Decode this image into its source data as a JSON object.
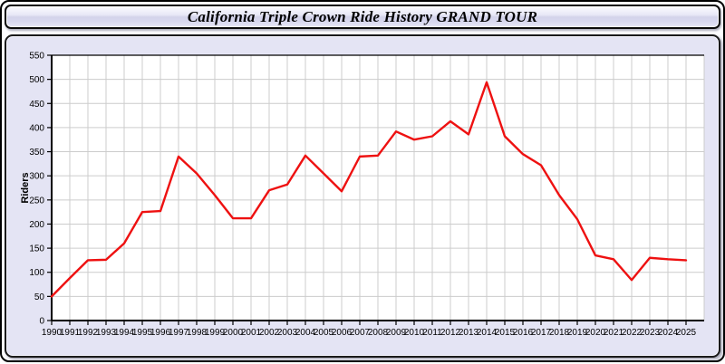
{
  "window": {
    "title": "California Triple Crown Ride History GRAND TOUR"
  },
  "chart_data": {
    "type": "line",
    "title": "California Triple Crown Ride History GRAND TOUR",
    "xlabel": "",
    "ylabel": "Riders",
    "x": [
      1990,
      1991,
      1992,
      1993,
      1994,
      1995,
      1996,
      1997,
      1998,
      1999,
      2000,
      2001,
      2002,
      2003,
      2004,
      2005,
      2006,
      2007,
      2008,
      2009,
      2010,
      2011,
      2012,
      2013,
      2014,
      2015,
      2016,
      2017,
      2018,
      2019,
      2020,
      2021,
      2022,
      2023,
      2024,
      2025
    ],
    "values": [
      50,
      88,
      125,
      126,
      160,
      225,
      227,
      340,
      305,
      260,
      212,
      212,
      270,
      282,
      342,
      305,
      268,
      340,
      342,
      392,
      375,
      382,
      413,
      386,
      494,
      382,
      345,
      322,
      260,
      210,
      135,
      127,
      84,
      130,
      127,
      125
    ],
    "ylim": [
      0,
      550
    ],
    "ytick_step": 50,
    "grid": true,
    "legend": "none",
    "series_name": "Riders",
    "line_color": "#ee1111"
  },
  "colors": {
    "panel_background": "#e4e4f4",
    "plot_background": "#ffffff",
    "gridline": "#cccccc",
    "axis": "#000000",
    "line": "#ee1111",
    "text": "#000000"
  }
}
